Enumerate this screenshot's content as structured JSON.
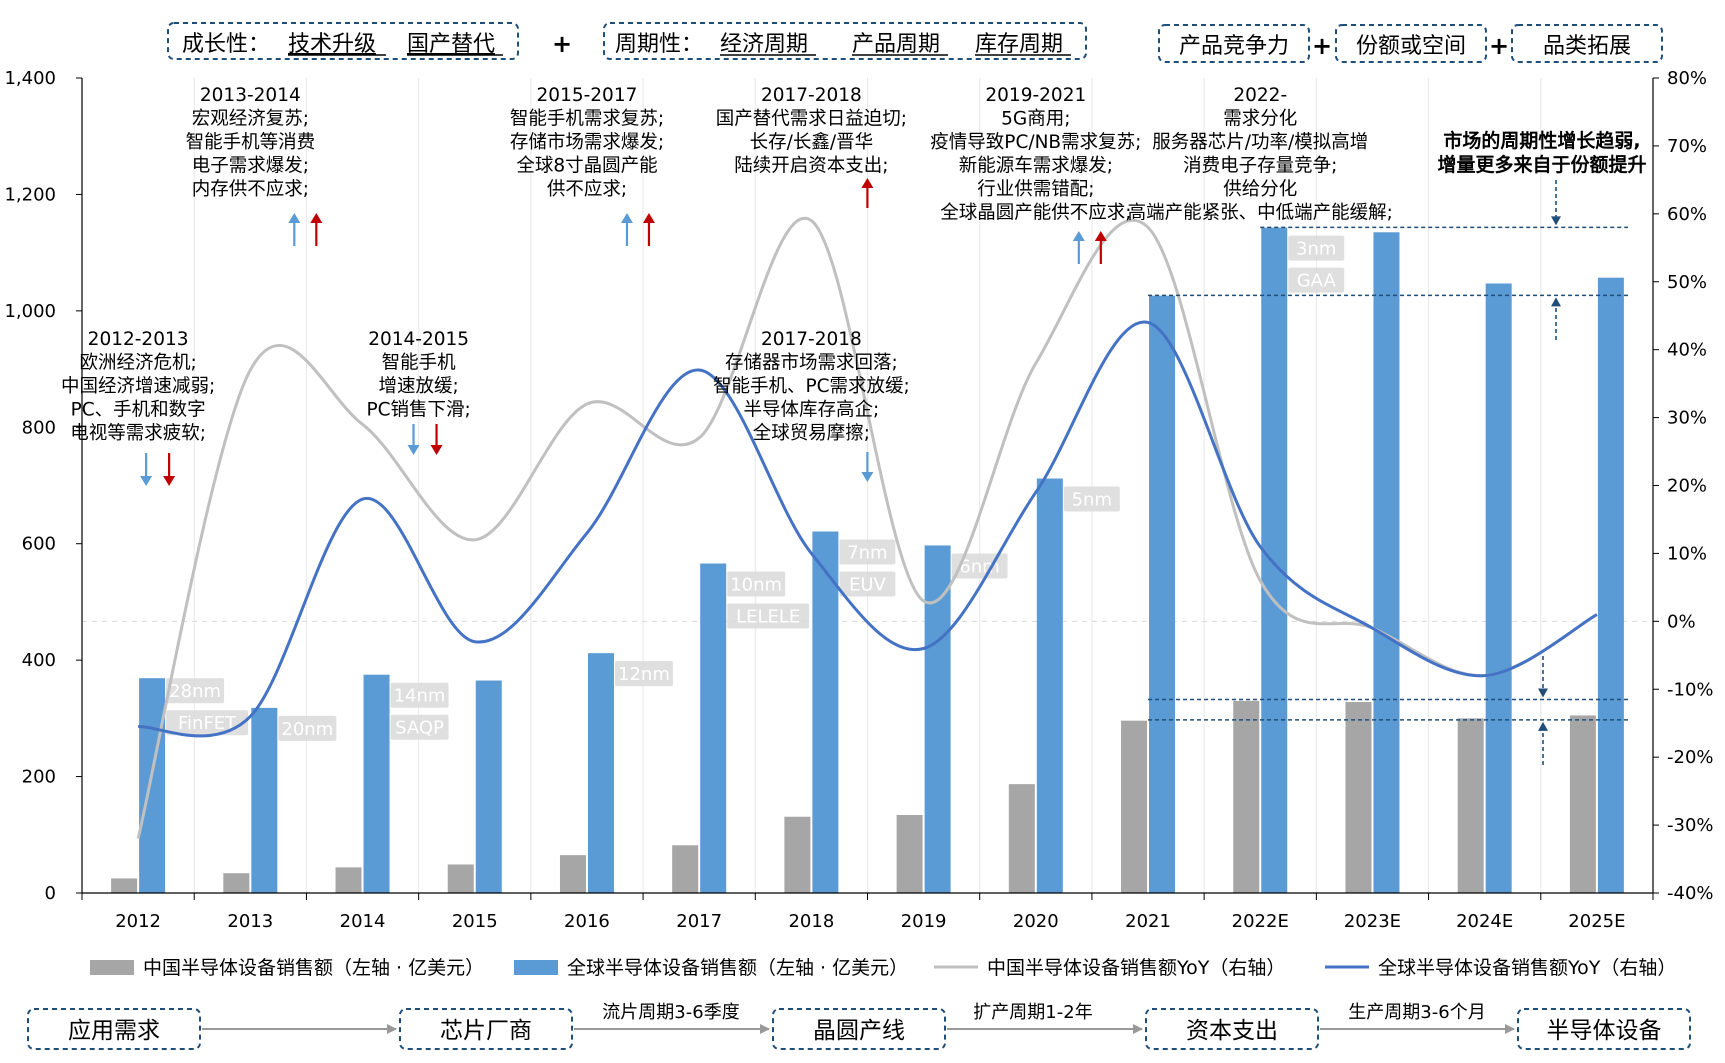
{
  "header": {
    "growth": {
      "label": "成长性：",
      "items": [
        "技术升级",
        "国产替代"
      ]
    },
    "plus1": "+",
    "cycle": {
      "label": "周期性：",
      "items": [
        "经济周期",
        "产品周期",
        "库存周期"
      ]
    },
    "right_boxes": [
      "产品竞争力",
      "份额或空间",
      "品类拓展"
    ],
    "plus_signs": [
      "+",
      "+"
    ]
  },
  "chart_data": {
    "type": "bar",
    "categories": [
      "2012",
      "2013",
      "2014",
      "2015",
      "2016",
      "2017",
      "2018",
      "2019",
      "2020",
      "2021",
      "2022E",
      "2023E",
      "2024E",
      "2025E"
    ],
    "left_axis": {
      "min": 0,
      "max": 1400,
      "ticks": [
        "0",
        "200",
        "400",
        "600",
        "800",
        "1,000",
        "1,200",
        "1,400"
      ],
      "tick_values": [
        0,
        200,
        400,
        600,
        800,
        1000,
        1200,
        1400
      ]
    },
    "right_axis": {
      "min": -40,
      "max": 80,
      "ticks": [
        "-40%",
        "-30%",
        "-20%",
        "-10%",
        "0%",
        "10%",
        "20%",
        "30%",
        "40%",
        "50%",
        "60%",
        "70%",
        "80%"
      ],
      "tick_values": [
        -40,
        -30,
        -20,
        -10,
        0,
        10,
        20,
        30,
        40,
        50,
        60,
        70,
        80
      ]
    },
    "series": [
      {
        "name": "中国半导体设备销售额（左轴 · 亿美元）",
        "type": "bar",
        "color": "#a6a6a6",
        "values": [
          25,
          34,
          44,
          49,
          65,
          82,
          131,
          134,
          187,
          296,
          330,
          328,
          300,
          305
        ]
      },
      {
        "name": "全球半导体设备销售额（左轴 · 亿美元）",
        "type": "bar",
        "color": "#5b9bd5",
        "values": [
          369,
          318,
          375,
          365,
          412,
          566,
          621,
          597,
          712,
          1026,
          1143,
          1135,
          1047,
          1057
        ]
      },
      {
        "name": "中国半导体设备销售额YoY（右轴）",
        "type": "line",
        "color": "#c0c0c0",
        "values": [
          -32,
          37,
          29,
          12,
          32,
          27,
          59,
          3,
          38,
          58,
          6,
          -1,
          -8,
          1
        ]
      },
      {
        "name": "全球半导体设备销售额YoY（右轴）",
        "type": "line",
        "color": "#4472c4",
        "values": [
          -15.5,
          -14,
          18,
          -3,
          13,
          37,
          10,
          -4,
          19,
          44,
          11,
          -1,
          -8,
          1
        ]
      }
    ],
    "node_labels": [
      {
        "idx": 0,
        "lines": [
          "28nm",
          "FinFET"
        ]
      },
      {
        "idx": 1,
        "lines": [
          "20nm"
        ]
      },
      {
        "idx": 2,
        "lines": [
          "14nm",
          "SAQP"
        ]
      },
      {
        "idx": 4,
        "lines": [
          "12nm"
        ]
      },
      {
        "idx": 5,
        "lines": [
          "10nm",
          "LELELE"
        ]
      },
      {
        "idx": 6,
        "lines": [
          "7nm",
          "EUV"
        ]
      },
      {
        "idx": 7,
        "lines": [
          "6nm"
        ]
      },
      {
        "idx": 8,
        "lines": [
          "5nm"
        ]
      },
      {
        "idx": 10,
        "lines": [
          "3nm",
          "GAA"
        ]
      }
    ],
    "annotations_top": [
      {
        "idx": 1.5,
        "lines": [
          "2013-2014",
          "宏观经济复苏;",
          "智能手机等消费",
          "电子需求爆发;",
          "内存供不应求;"
        ]
      },
      {
        "idx": 4.5,
        "lines": [
          "2015-2017",
          "智能手机需求复苏;",
          "存储市场需求爆发;",
          "全球8寸晶圆产能",
          "供不应求;"
        ]
      },
      {
        "idx": 6.5,
        "lines": [
          "2017-2018",
          "国产替代需求日益迫切;",
          "长存/长鑫/晋华",
          "陆续开启资本支出;"
        ]
      },
      {
        "idx": 8.5,
        "lines": [
          "2019-2021",
          "5G商用;",
          "疫情导致PC/NB需求复苏;",
          "新能源车需求爆发;",
          "行业供需错配;",
          "全球晶圆产能供不应求;"
        ]
      },
      {
        "idx": 10.5,
        "lines": [
          "2022-",
          "需求分化",
          "服务器芯片/功率/模拟高增",
          "消费电子存量竞争;",
          "供给分化",
          "高端产能紧张、中低端产能缓解;"
        ]
      }
    ],
    "annotations_mid": [
      {
        "idx": 0.5,
        "lines": [
          "2012-2013",
          "欧洲经济危机;",
          "中国经济增速减弱;",
          "PC、手机和数字",
          "电视等需求疲软;"
        ]
      },
      {
        "idx": 3,
        "lines": [
          "2014-2015",
          "智能手机",
          "增速放缓;",
          "PC销售下滑;"
        ]
      },
      {
        "idx": 6.5,
        "lines": [
          "2017-2018",
          "存储器市场需求回落;",
          "智能手机、PC需求放缓;",
          "半导体库存高企;",
          "全球贸易摩擦;"
        ]
      }
    ],
    "right_note": [
      "市场的周期性增长趋弱,",
      "增量更多来自于份额提升"
    ]
  },
  "colors": {
    "accent_blue": "#1f4e79",
    "arrow_blue": "#5b9bd5",
    "arrow_red": "#c00000",
    "box_border": "#1f4e79"
  },
  "flow": {
    "boxes": [
      "应用需求",
      "芯片厂商",
      "晶圆产线",
      "资本支出",
      "半导体设备"
    ],
    "arrows": [
      "",
      "流片周期3-6季度",
      "扩产周期1-2年",
      "生产周期3-6个月"
    ]
  }
}
